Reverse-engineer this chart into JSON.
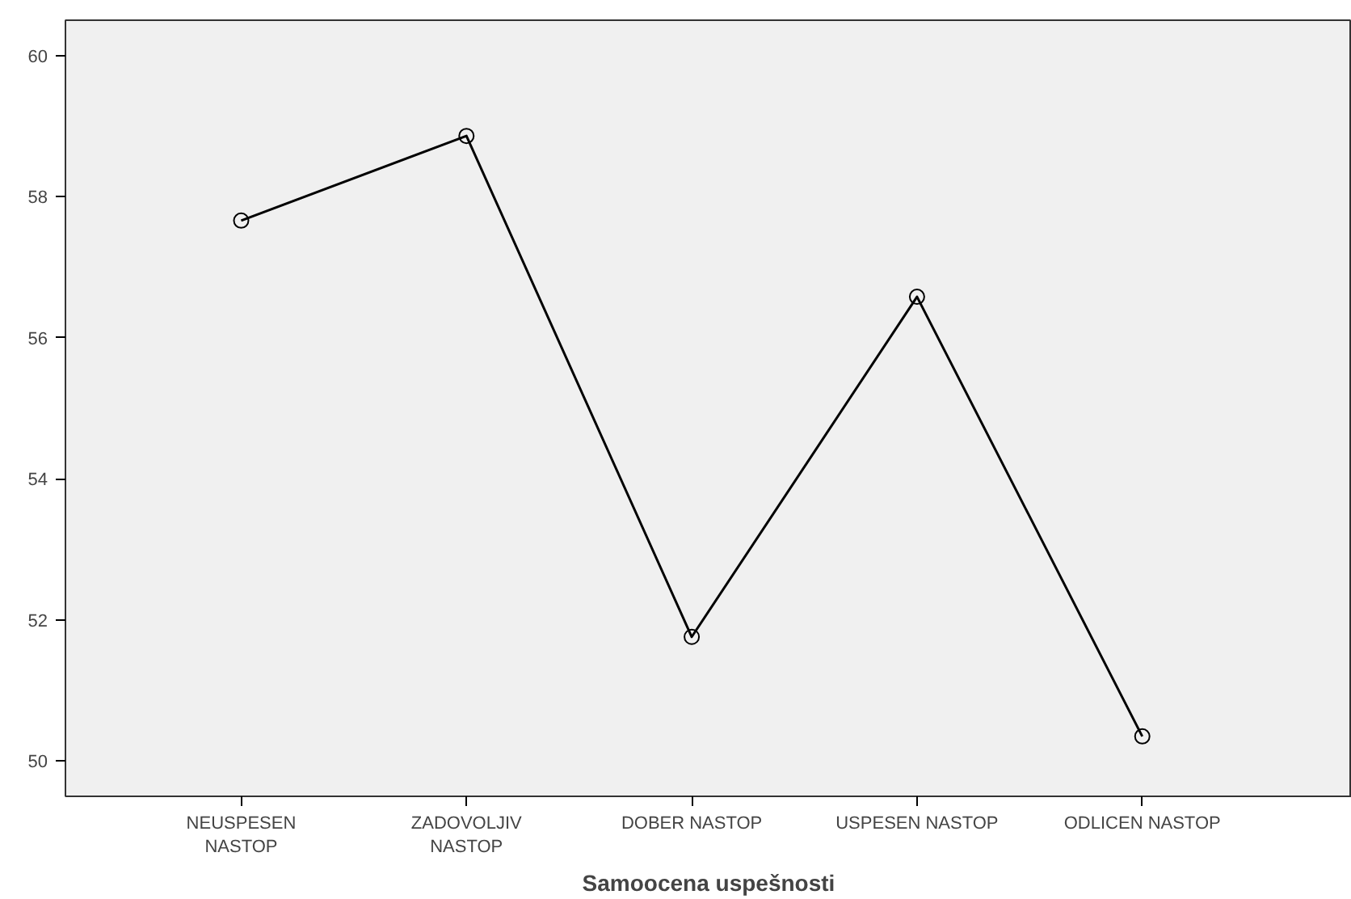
{
  "chart_data": {
    "type": "line",
    "xlabel": "Samoocena uspešnosti",
    "categories": [
      "NEUSPESEN\nNASTOP",
      "ZADOVOLJIV\nNASTOP",
      "DOBER NASTOP",
      "USPESEN NASTOP",
      "ODLICEN NASTOP"
    ],
    "series": [
      {
        "color": "#000000",
        "values": [
          57.66,
          58.86,
          51.76,
          56.58,
          50.35
        ]
      }
    ],
    "ylim": [
      49.5,
      60.5
    ],
    "yticks": [
      50,
      52,
      54,
      56,
      58,
      60
    ],
    "grid": false,
    "marker": "circle",
    "line_style": "solid"
  }
}
